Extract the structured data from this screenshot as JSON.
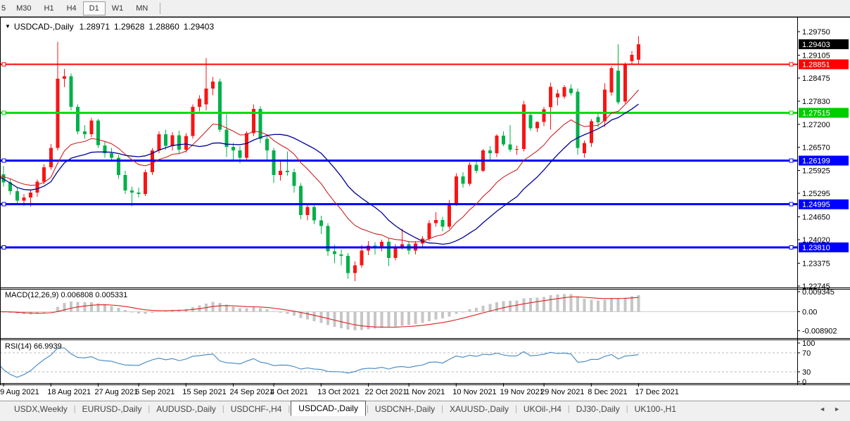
{
  "toolbar": {
    "timeframes": [
      "5",
      "M30",
      "H1",
      "H4",
      "D1",
      "W1",
      "MN"
    ],
    "active": "D1"
  },
  "chart_header": {
    "menu_icon": "▼",
    "symbol": "USDCAD-,Daily",
    "open": "1.28971",
    "high": "1.29628",
    "low": "1.28860",
    "close": "1.29403"
  },
  "chart_data": {
    "type": "candlestick",
    "symbol": "USDCAD-,Daily",
    "timeframe": "Daily",
    "ylim": [
      1.227,
      1.3008
    ],
    "colors": {
      "up": "#f81515",
      "down": "#00b04a",
      "ma_fast": "#cc2020",
      "ma_slow": "#000096",
      "hist": "#c6c6c6",
      "macd_signal": "#dd2020",
      "rsi": "#3e86c6",
      "grid_dash": "#b8b8b8"
    },
    "overlays": [
      {
        "name": "ma-fast",
        "method": "ema",
        "period": 13
      },
      {
        "name": "ma-slow",
        "method": "sma",
        "period": 20
      }
    ],
    "hlines": [
      {
        "price": 1.28851,
        "color": "#ff0000",
        "width": 2
      },
      {
        "price": 1.27515,
        "color": "#00dd00",
        "width": 3
      },
      {
        "price": 1.26199,
        "color": "#0000ff",
        "width": 3
      },
      {
        "price": 1.24995,
        "color": "#0000ff",
        "width": 3
      },
      {
        "price": 1.2381,
        "color": "#0000ff",
        "width": 3
      }
    ],
    "price_ticks": [
      "1.29750",
      "1.29105",
      "1.28475",
      "1.27830",
      "1.27200",
      "1.26570",
      "1.25925",
      "1.25295",
      "1.24650",
      "1.24020",
      "1.23375",
      "1.22745"
    ],
    "price_badges": [
      {
        "label": "1.29403",
        "bg": "#000000"
      },
      {
        "label": "1.28851",
        "bg": "#ff0000"
      },
      {
        "label": "1.27515",
        "bg": "#00cc00"
      },
      {
        "label": "1.26199",
        "bg": "#0000ff"
      },
      {
        "label": "1.24995",
        "bg": "#0000ff"
      },
      {
        "label": "1.23810",
        "bg": "#0000ff"
      }
    ],
    "x_tick_labels": [
      "9 Aug 2021",
      "18 Aug 2021",
      "27 Aug 2021",
      "6 Sep 2021",
      "15 Sep 2021",
      "24 Sep 2021",
      "4 Oct 2021",
      "13 Oct 2021",
      "22 Oct 2021",
      "1 Nov 2021",
      "10 Nov 2021",
      "19 Nov 2021",
      "29 Nov 2021",
      "8 Dec 2021",
      "17 Dec 2021"
    ],
    "x_tick_bars": [
      1,
      8,
      15,
      21,
      28,
      35,
      41,
      48,
      55,
      61,
      68,
      75,
      81,
      88,
      95
    ],
    "ohlc": [
      [
        1.26,
        1.2612,
        1.2556,
        1.2578
      ],
      [
        1.2582,
        1.2605,
        1.2548,
        1.256
      ],
      [
        1.256,
        1.257,
        1.2526,
        1.2536
      ],
      [
        1.2536,
        1.2545,
        1.25,
        1.251
      ],
      [
        1.251,
        1.2528,
        1.2495,
        1.2518
      ],
      [
        1.2518,
        1.254,
        1.2493,
        1.2532
      ],
      [
        1.2532,
        1.2568,
        1.252,
        1.2562
      ],
      [
        1.2562,
        1.261,
        1.2555,
        1.2602
      ],
      [
        1.2602,
        1.2665,
        1.2595,
        1.2655
      ],
      [
        1.2655,
        1.2947,
        1.2648,
        1.2845
      ],
      [
        1.2845,
        1.2872,
        1.2822,
        1.2852
      ],
      [
        1.2852,
        1.286,
        1.2758,
        1.2768
      ],
      [
        1.2768,
        1.2775,
        1.2692,
        1.27
      ],
      [
        1.27,
        1.2718,
        1.268,
        1.2692
      ],
      [
        1.2692,
        1.2738,
        1.2685,
        1.273
      ],
      [
        1.273,
        1.2735,
        1.2655,
        1.2662
      ],
      [
        1.2662,
        1.2672,
        1.2628,
        1.264
      ],
      [
        1.264,
        1.2655,
        1.2618,
        1.2628
      ],
      [
        1.2628,
        1.2635,
        1.257,
        1.258
      ],
      [
        1.258,
        1.2592,
        1.2528,
        1.2538
      ],
      [
        1.2538,
        1.2548,
        1.2494,
        1.2532
      ],
      [
        1.2532,
        1.2545,
        1.2518,
        1.2528
      ],
      [
        1.2528,
        1.2595,
        1.2522,
        1.2588
      ],
      [
        1.2588,
        1.2655,
        1.258,
        1.2648
      ],
      [
        1.2648,
        1.27,
        1.264,
        1.2692
      ],
      [
        1.2692,
        1.2705,
        1.265,
        1.266
      ],
      [
        1.266,
        1.2698,
        1.2648,
        1.269
      ],
      [
        1.269,
        1.2702,
        1.264,
        1.265
      ],
      [
        1.265,
        1.2695,
        1.2642,
        1.2688
      ],
      [
        1.2688,
        1.2775,
        1.268,
        1.2768
      ],
      [
        1.2768,
        1.28,
        1.2755,
        1.279
      ],
      [
        1.2775,
        1.2902,
        1.2758,
        1.2818
      ],
      [
        1.2818,
        1.285,
        1.28,
        1.2838
      ],
      [
        1.2838,
        1.2845,
        1.2698,
        1.2705
      ],
      [
        1.2705,
        1.2748,
        1.263,
        1.2658
      ],
      [
        1.2658,
        1.2668,
        1.2622,
        1.2648
      ],
      [
        1.2648,
        1.266,
        1.2612,
        1.2628
      ],
      [
        1.2628,
        1.27,
        1.262,
        1.2695
      ],
      [
        1.2695,
        1.2775,
        1.2688,
        1.2762
      ],
      [
        1.2762,
        1.277,
        1.2668,
        1.268
      ],
      [
        1.268,
        1.269,
        1.2618,
        1.2648
      ],
      [
        1.2648,
        1.2655,
        1.2558,
        1.258
      ],
      [
        1.258,
        1.2622,
        1.2565,
        1.2592
      ],
      [
        1.2592,
        1.2645,
        1.2578,
        1.2588
      ],
      [
        1.2588,
        1.2598,
        1.2532,
        1.255
      ],
      [
        1.255,
        1.2558,
        1.2458,
        1.247
      ],
      [
        1.247,
        1.2502,
        1.2455,
        1.2492
      ],
      [
        1.2492,
        1.25,
        1.2445,
        1.2455
      ],
      [
        1.2455,
        1.2468,
        1.2418,
        1.244
      ],
      [
        1.244,
        1.2448,
        1.2358,
        1.237
      ],
      [
        1.237,
        1.2388,
        1.2337,
        1.2362
      ],
      [
        1.2362,
        1.2375,
        1.2332,
        1.2358
      ],
      [
        1.2358,
        1.2365,
        1.2295,
        1.231
      ],
      [
        1.231,
        1.2342,
        1.2288,
        1.2332
      ],
      [
        1.2332,
        1.2388,
        1.2325,
        1.2372
      ],
      [
        1.2372,
        1.2398,
        1.236,
        1.2386
      ],
      [
        1.2386,
        1.2395,
        1.2362,
        1.2378
      ],
      [
        1.2378,
        1.2402,
        1.237,
        1.2396
      ],
      [
        1.2396,
        1.2405,
        1.233,
        1.2352
      ],
      [
        1.2352,
        1.239,
        1.2345,
        1.2382
      ],
      [
        1.2382,
        1.2432,
        1.2375,
        1.239
      ],
      [
        1.239,
        1.2398,
        1.2362,
        1.2372
      ],
      [
        1.2372,
        1.2398,
        1.2362,
        1.2392
      ],
      [
        1.2392,
        1.2412,
        1.238,
        1.2405
      ],
      [
        1.2405,
        1.2455,
        1.2398,
        1.2448
      ],
      [
        1.2448,
        1.2478,
        1.2438,
        1.2456
      ],
      [
        1.2456,
        1.2465,
        1.2425,
        1.2438
      ],
      [
        1.2438,
        1.2512,
        1.2432,
        1.2502
      ],
      [
        1.2502,
        1.2585,
        1.2495,
        1.2576
      ],
      [
        1.2576,
        1.2588,
        1.2545,
        1.2556
      ],
      [
        1.2556,
        1.2615,
        1.255,
        1.2608
      ],
      [
        1.2608,
        1.2618,
        1.2585,
        1.2592
      ],
      [
        1.2592,
        1.2652,
        1.2588,
        1.2648
      ],
      [
        1.2648,
        1.266,
        1.262,
        1.264
      ],
      [
        1.264,
        1.2692,
        1.263,
        1.2689
      ],
      [
        1.2689,
        1.27,
        1.266,
        1.2664
      ],
      [
        1.2664,
        1.2718,
        1.2644,
        1.265
      ],
      [
        1.265,
        1.2662,
        1.2635,
        1.2652
      ],
      [
        1.2652,
        1.2784,
        1.2645,
        1.2775
      ],
      [
        1.2746,
        1.2752,
        1.2702,
        1.2709
      ],
      [
        1.2709,
        1.2728,
        1.2698,
        1.2726
      ],
      [
        1.2726,
        1.2768,
        1.2715,
        1.2761
      ],
      [
        1.2767,
        1.2835,
        1.2705,
        1.2823
      ],
      [
        1.2794,
        1.2815,
        1.2772,
        1.2805
      ],
      [
        1.2796,
        1.2828,
        1.279,
        1.2822
      ],
      [
        1.2818,
        1.283,
        1.2799,
        1.2806
      ],
      [
        1.281,
        1.2818,
        1.2636,
        1.2655
      ],
      [
        1.264,
        1.2675,
        1.2628,
        1.2668
      ],
      [
        1.2668,
        1.2734,
        1.2658,
        1.2728
      ],
      [
        1.274,
        1.2752,
        1.2712,
        1.2725
      ],
      [
        1.2728,
        1.2833,
        1.2713,
        1.2815
      ],
      [
        1.2808,
        1.288,
        1.2799,
        1.2874
      ],
      [
        1.2868,
        1.294,
        1.2775,
        1.2781
      ],
      [
        1.2782,
        1.289,
        1.2777,
        1.2884
      ],
      [
        1.2894,
        1.2922,
        1.2884,
        1.2911
      ],
      [
        1.28971,
        1.29628,
        1.2886,
        1.29403
      ]
    ]
  },
  "indicators": {
    "macd": {
      "label": "MACD(12,26,9) 0.006808 0.005331",
      "params": [
        12,
        26,
        9
      ],
      "axis": [
        "0.009345",
        "0.00",
        "-0.008902"
      ]
    },
    "rsi": {
      "label": "RSI(14) 66.9939",
      "period": 14,
      "value": "66.9939",
      "axis": [
        "100",
        "70",
        "30",
        "0"
      ],
      "levels": [
        70,
        30
      ]
    }
  },
  "tabs": {
    "items": [
      "USDX,Weekly",
      "EURUSD-,Daily",
      "AUDUSD-,Daily",
      "USDCHF-,H4",
      "USDCAD-,Daily",
      "USDCNH-,Daily",
      "XAUUSD-,Daily",
      "UKOil-,H4",
      "DJ30-,Daily",
      "UK100-,H1"
    ],
    "active": "USDCAD-,Daily",
    "arrow_left": "◄",
    "arrow_right": "►"
  }
}
